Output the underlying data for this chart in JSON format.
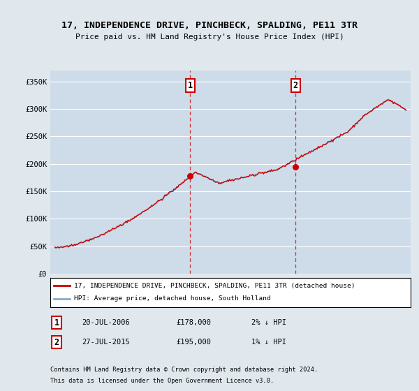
{
  "title": "17, INDEPENDENCE DRIVE, PINCHBECK, SPALDING, PE11 3TR",
  "subtitle": "Price paid vs. HM Land Registry's House Price Index (HPI)",
  "bg_color": "#e0e8ee",
  "plot_bg_color": "#cddce8",
  "ylim": [
    0,
    370000
  ],
  "yticks": [
    0,
    50000,
    100000,
    150000,
    200000,
    250000,
    300000,
    350000
  ],
  "ytick_labels": [
    "£0",
    "£50K",
    "£100K",
    "£150K",
    "£200K",
    "£250K",
    "£300K",
    "£350K"
  ],
  "xlim_left": 1994.6,
  "xlim_right": 2025.4,
  "sale1_year": 2006.55,
  "sale1_price": 178000,
  "sale2_year": 2015.57,
  "sale2_price": 195000,
  "sale1_label": "1",
  "sale2_label": "2",
  "legend_line1": "17, INDEPENDENCE DRIVE, PINCHBECK, SPALDING, PE11 3TR (detached house)",
  "legend_line2": "HPI: Average price, detached house, South Holland",
  "footer_line1": "Contains HM Land Registry data © Crown copyright and database right 2024.",
  "footer_line2": "This data is licensed under the Open Government Licence v3.0.",
  "line_color_red": "#cc0000",
  "line_color_blue": "#88aacc",
  "marker_color": "#cc0000",
  "vline_color": "#cc3333",
  "grid_color": "#ffffff",
  "sale_box_color": "#cc0000",
  "sale1_date": "20-JUL-2006",
  "sale1_amount": "£178,000",
  "sale1_hpi": "2% ↓ HPI",
  "sale2_date": "27-JUL-2015",
  "sale2_amount": "£195,000",
  "sale2_hpi": "1% ↓ HPI"
}
